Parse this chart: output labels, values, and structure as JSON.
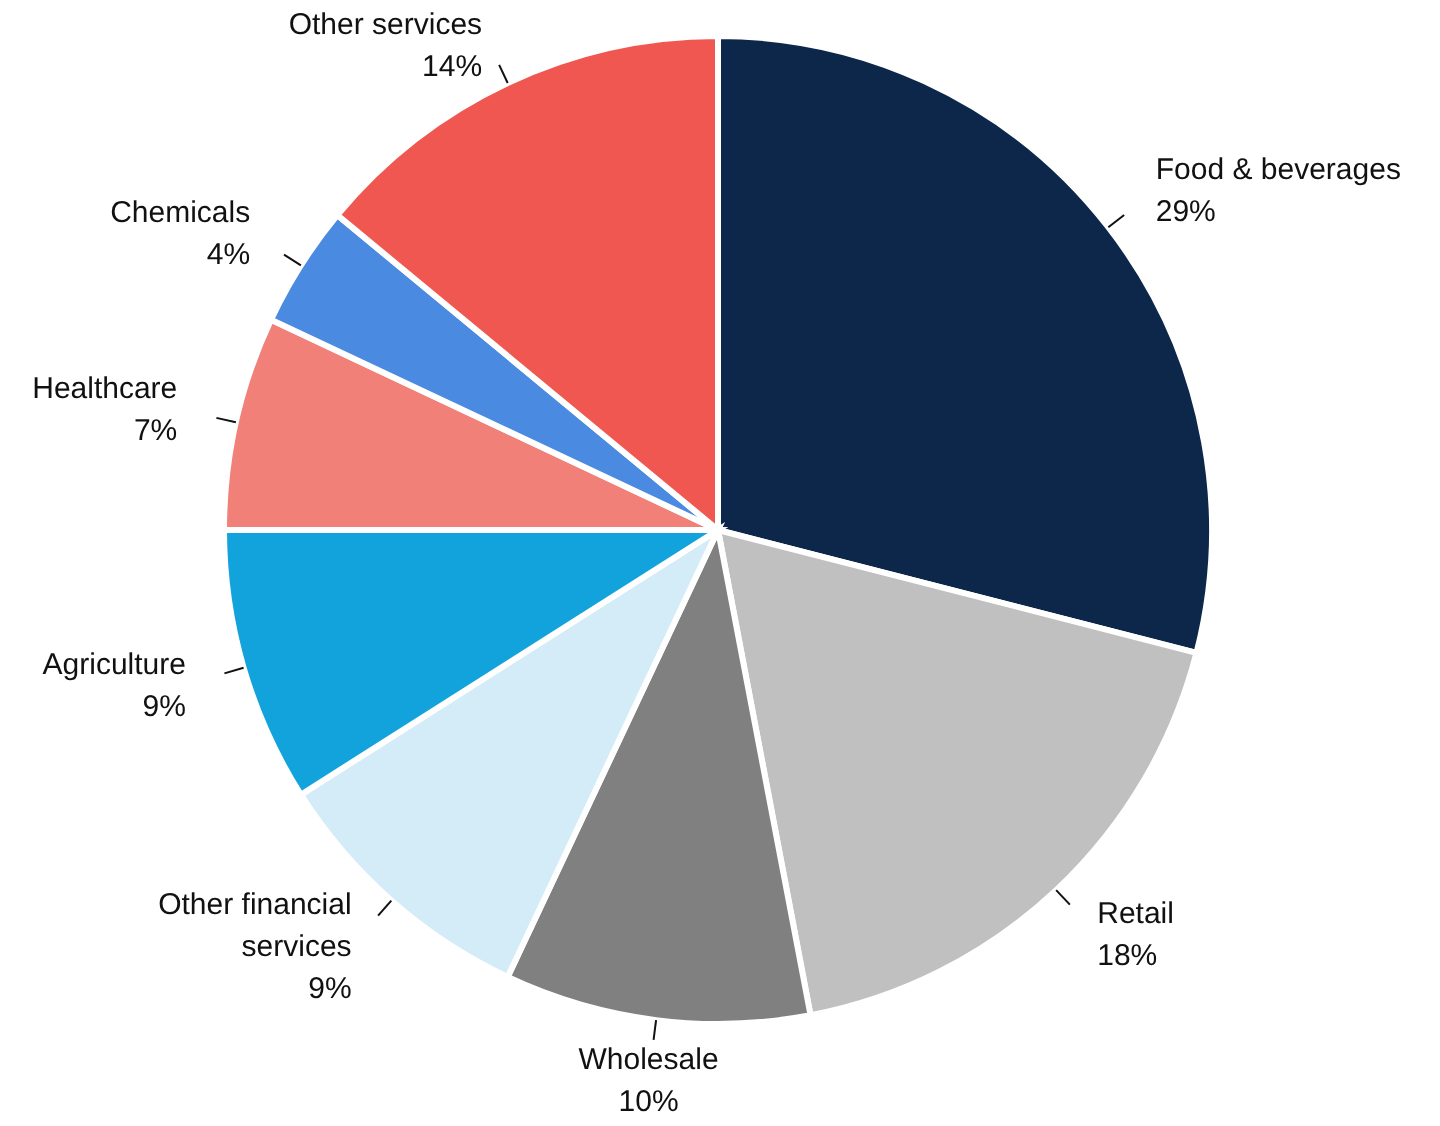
{
  "chart_data": {
    "type": "pie",
    "categories": [
      "Food & beverages",
      "Retail",
      "Wholesale",
      "Other financial services",
      "Agriculture",
      "Healthcare",
      "Chemicals",
      "Other services"
    ],
    "values": [
      29,
      18,
      10,
      9,
      9,
      7,
      4,
      14
    ],
    "value_labels": [
      "29%",
      "18%",
      "10%",
      "9%",
      "9%",
      "7%",
      "4%",
      "14%"
    ],
    "colors": [
      "#0c2749",
      "#c0c0c0",
      "#808080",
      "#d3ecf7",
      "#13a3dc",
      "#f18079",
      "#4a8ae0",
      "#ef5750"
    ],
    "legend": false
  }
}
